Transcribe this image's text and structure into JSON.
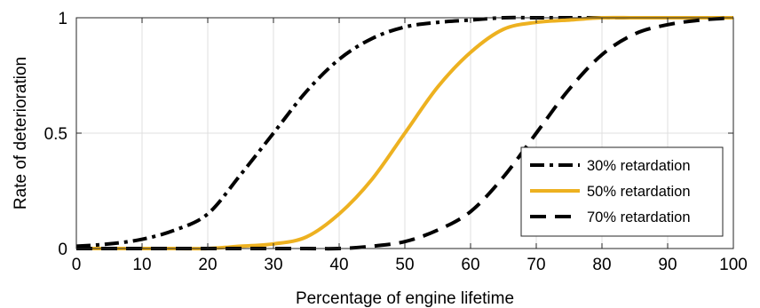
{
  "chart_data": {
    "type": "line",
    "xlabel": "Percentage of engine lifetime",
    "ylabel": "Rate of deterioration",
    "xlim": [
      0,
      100
    ],
    "ylim": [
      0,
      1
    ],
    "xticks": [
      0,
      10,
      20,
      30,
      40,
      50,
      60,
      70,
      80,
      90,
      100
    ],
    "yticks": [
      0,
      0.5,
      1
    ],
    "ytick_labels": [
      "0",
      "0.5",
      "1"
    ],
    "grid": true,
    "legend_position": "lower-right",
    "x": [
      0,
      5,
      10,
      15,
      20,
      25,
      30,
      35,
      40,
      45,
      50,
      55,
      60,
      65,
      70,
      75,
      80,
      85,
      90,
      95,
      100
    ],
    "series": [
      {
        "name": "30% retardation",
        "color": "#000000",
        "style": "dash-dot",
        "values": [
          0.01,
          0.02,
          0.04,
          0.08,
          0.15,
          0.32,
          0.5,
          0.68,
          0.82,
          0.91,
          0.96,
          0.98,
          0.99,
          1.0,
          1.0,
          1.0,
          1.0,
          1.0,
          1.0,
          1.0,
          1.0
        ]
      },
      {
        "name": "50% retardation",
        "color": "#EDB120",
        "style": "solid",
        "values": [
          0.0,
          0.0,
          0.0,
          0.0,
          0.0,
          0.01,
          0.02,
          0.05,
          0.15,
          0.3,
          0.5,
          0.7,
          0.85,
          0.95,
          0.98,
          0.99,
          1.0,
          1.0,
          1.0,
          1.0,
          1.0
        ]
      },
      {
        "name": "70% retardation",
        "color": "#000000",
        "style": "dashed",
        "values": [
          0.0,
          0.0,
          0.0,
          0.0,
          0.0,
          0.0,
          0.0,
          0.0,
          0.0,
          0.01,
          0.03,
          0.08,
          0.16,
          0.31,
          0.5,
          0.69,
          0.84,
          0.93,
          0.97,
          0.99,
          1.0
        ]
      }
    ]
  }
}
